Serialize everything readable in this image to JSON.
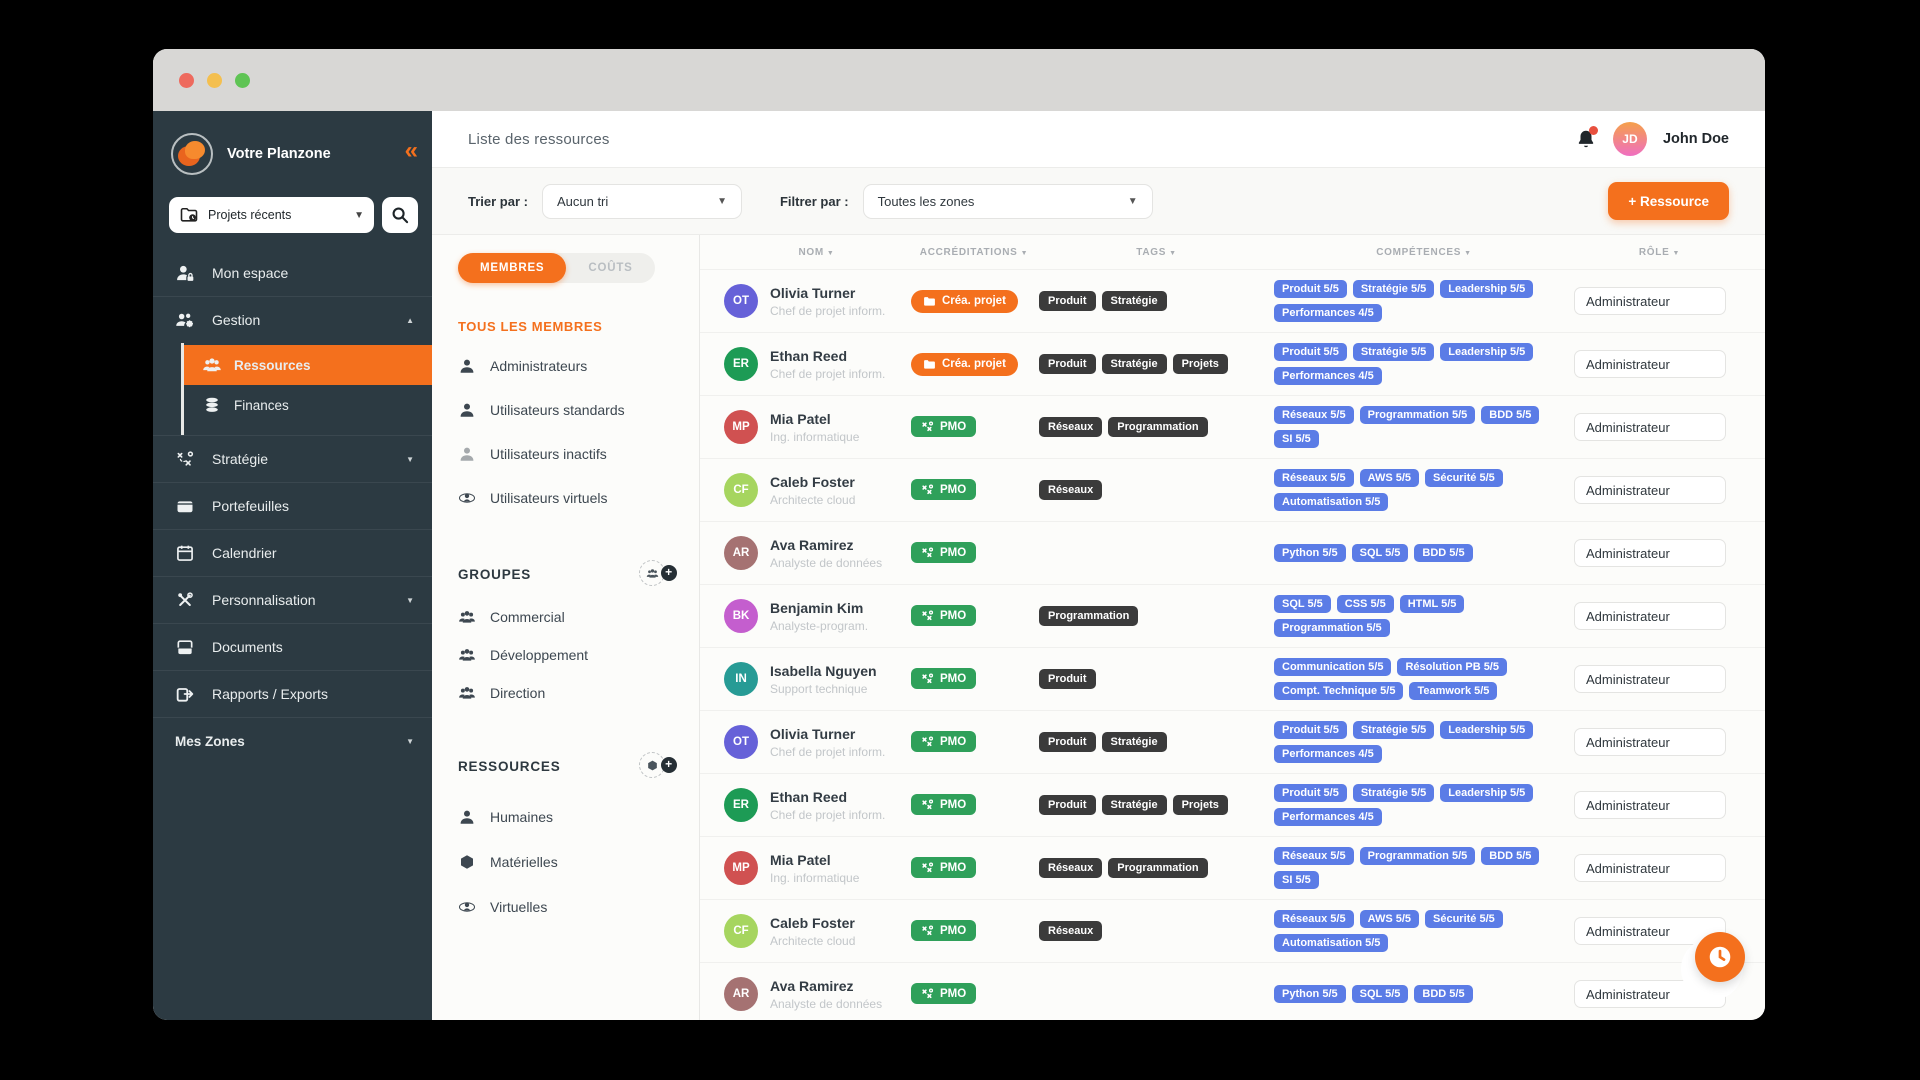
{
  "colors": {
    "accent_orange": "#f4701d",
    "sidebar_bg": "#2c3a42",
    "pmo_green": "#2fa05a",
    "skill_blue": "#5b7ce6",
    "tag_dark": "#3b3b3b",
    "traffic": [
      "#ee6a5e",
      "#f4bf4f",
      "#5fc454"
    ]
  },
  "sidebar": {
    "brand": "Votre Planzone",
    "collapse_glyph": "«",
    "project_selector": {
      "label": "Projets récents",
      "icon": "folder-clock"
    },
    "items": [
      {
        "id": "mon-espace",
        "label": "Mon espace",
        "icon": "user-lock"
      },
      {
        "id": "gestion",
        "label": "Gestion",
        "icon": "users-gear",
        "chevron": "up",
        "children": [
          {
            "id": "ressources",
            "label": "Ressources",
            "icon": "users",
            "active": true
          },
          {
            "id": "finances",
            "label": "Finances",
            "icon": "coins",
            "active": false
          }
        ]
      },
      {
        "id": "strategie",
        "label": "Stratégie",
        "icon": "strategy",
        "chevron": "down"
      },
      {
        "id": "portefeuilles",
        "label": "Portefeuilles",
        "icon": "wallet"
      },
      {
        "id": "calendrier",
        "label": "Calendrier",
        "icon": "calendar"
      },
      {
        "id": "personnalisation",
        "label": "Personnalisation",
        "icon": "tools",
        "chevron": "down"
      },
      {
        "id": "documents",
        "label": "Documents",
        "icon": "document"
      },
      {
        "id": "rapports-exports",
        "label": "Rapports / Exports",
        "icon": "export"
      }
    ],
    "zones": {
      "label": "Mes Zones",
      "chevron": "down"
    }
  },
  "header": {
    "title": "Liste des ressources",
    "user": {
      "initials": "JD",
      "name": "John Doe"
    }
  },
  "toolbar": {
    "sort_label": "Trier par :",
    "sort_value": "Aucun tri",
    "filter_label": "Filtrer par :",
    "filter_value": "Toutes les zones",
    "add_button": "+ Ressource"
  },
  "members_panel": {
    "tabs": [
      {
        "label": "MEMBRES",
        "active": true
      },
      {
        "label": "COÛTS",
        "active": false
      }
    ],
    "all_members": "TOUS LES MEMBRES",
    "member_types": [
      {
        "label": "Administrateurs",
        "icon": "user",
        "dim": false
      },
      {
        "label": "Utilisateurs standards",
        "icon": "user",
        "dim": false
      },
      {
        "label": "Utilisateurs inactifs",
        "icon": "user",
        "dim": true
      },
      {
        "label": "Utilisateurs virtuels",
        "icon": "orbit-user",
        "dim": false
      }
    ],
    "groups": {
      "title": "GROUPES",
      "add_icon": "users",
      "items": [
        "Commercial",
        "Développement",
        "Direction"
      ],
      "item_icon": "users"
    },
    "resources": {
      "title": "RESSOURCES",
      "add_icon": "cube",
      "items": [
        {
          "label": "Humaines",
          "icon": "user"
        },
        {
          "label": "Matérielles",
          "icon": "cube"
        },
        {
          "label": "Virtuelles",
          "icon": "orbit-user"
        }
      ]
    }
  },
  "table": {
    "columns": [
      "NOM",
      "ACCRÉDITATIONS",
      "TAGS",
      "COMPÉTENCES",
      "RÔLE"
    ],
    "rows": [
      {
        "initials": "OT",
        "avatar_color": "#6661d8",
        "name": "Olivia Turner",
        "subtitle": "Chef de projet inform.",
        "accreditation": {
          "label": "Créa. projet",
          "type": "crea"
        },
        "tags": [
          "Produit",
          "Stratégie"
        ],
        "skills": [
          "Produit 5/5",
          "Stratégie 5/5",
          "Leadership 5/5",
          "Performances 4/5"
        ],
        "role": "Administrateur"
      },
      {
        "initials": "ER",
        "avatar_color": "#1d9b55",
        "name": "Ethan Reed",
        "subtitle": "Chef de projet inform.",
        "accreditation": {
          "label": "Créa. projet",
          "type": "crea"
        },
        "tags": [
          "Produit",
          "Stratégie",
          "Projets"
        ],
        "skills": [
          "Produit 5/5",
          "Stratégie 5/5",
          "Leadership 5/5",
          "Performances 4/5"
        ],
        "role": "Administrateur"
      },
      {
        "initials": "MP",
        "avatar_color": "#d05151",
        "name": "Mia Patel",
        "subtitle": "Ing. informatique",
        "accreditation": {
          "label": "PMO",
          "type": "pmo"
        },
        "tags": [
          "Réseaux",
          "Programmation"
        ],
        "skills": [
          "Réseaux 5/5",
          "Programmation 5/5",
          "BDD 5/5",
          "SI 5/5"
        ],
        "role": "Administrateur"
      },
      {
        "initials": "CF",
        "avatar_color": "#a6d55f",
        "name": "Caleb Foster",
        "subtitle": "Architecte cloud",
        "accreditation": {
          "label": "PMO",
          "type": "pmo"
        },
        "tags": [
          "Réseaux"
        ],
        "skills": [
          "Réseaux 5/5",
          "AWS 5/5",
          "Sécurité 5/5",
          "Automatisation 5/5"
        ],
        "role": "Administrateur"
      },
      {
        "initials": "AR",
        "avatar_color": "#a57272",
        "name": "Ava Ramirez",
        "subtitle": "Analyste de données",
        "accreditation": {
          "label": "PMO",
          "type": "pmo"
        },
        "tags": [],
        "skills": [
          "Python 5/5",
          "SQL 5/5",
          "BDD 5/5"
        ],
        "role": "Administrateur"
      },
      {
        "initials": "BK",
        "avatar_color": "#c45ece",
        "name": "Benjamin Kim",
        "subtitle": "Analyste-program.",
        "accreditation": {
          "label": "PMO",
          "type": "pmo"
        },
        "tags": [
          "Programmation"
        ],
        "skills": [
          "SQL 5/5",
          "CSS 5/5",
          "HTML 5/5",
          "Programmation 5/5"
        ],
        "role": "Administrateur"
      },
      {
        "initials": "IN",
        "avatar_color": "#279b95",
        "name": "Isabella Nguyen",
        "subtitle": "Support technique",
        "accreditation": {
          "label": "PMO",
          "type": "pmo"
        },
        "tags": [
          "Produit"
        ],
        "skills": [
          "Communication 5/5",
          "Résolution PB 5/5",
          "Compt. Technique 5/5",
          "Teamwork 5/5"
        ],
        "role": "Administrateur"
      },
      {
        "initials": "OT",
        "avatar_color": "#6661d8",
        "name": "Olivia Turner",
        "subtitle": "Chef de projet inform.",
        "accreditation": {
          "label": "PMO",
          "type": "pmo"
        },
        "tags": [
          "Produit",
          "Stratégie"
        ],
        "skills": [
          "Produit 5/5",
          "Stratégie 5/5",
          "Leadership 5/5",
          "Performances 4/5"
        ],
        "role": "Administrateur"
      },
      {
        "initials": "ER",
        "avatar_color": "#1d9b55",
        "name": "Ethan Reed",
        "subtitle": "Chef de projet inform.",
        "accreditation": {
          "label": "PMO",
          "type": "pmo"
        },
        "tags": [
          "Produit",
          "Stratégie",
          "Projets"
        ],
        "skills": [
          "Produit 5/5",
          "Stratégie 5/5",
          "Leadership 5/5",
          "Performances 4/5"
        ],
        "role": "Administrateur"
      },
      {
        "initials": "MP",
        "avatar_color": "#d05151",
        "name": "Mia Patel",
        "subtitle": "Ing. informatique",
        "accreditation": {
          "label": "PMO",
          "type": "pmo"
        },
        "tags": [
          "Réseaux",
          "Programmation"
        ],
        "skills": [
          "Réseaux 5/5",
          "Programmation 5/5",
          "BDD 5/5",
          "SI 5/5"
        ],
        "role": "Administrateur"
      },
      {
        "initials": "CF",
        "avatar_color": "#a6d55f",
        "name": "Caleb Foster",
        "subtitle": "Architecte cloud",
        "accreditation": {
          "label": "PMO",
          "type": "pmo"
        },
        "tags": [
          "Réseaux"
        ],
        "skills": [
          "Réseaux 5/5",
          "AWS 5/5",
          "Sécurité 5/5",
          "Automatisation 5/5"
        ],
        "role": "Administrateur"
      },
      {
        "initials": "AR",
        "avatar_color": "#a57272",
        "name": "Ava Ramirez",
        "subtitle": "Analyste de données",
        "accreditation": {
          "label": "PMO",
          "type": "pmo"
        },
        "tags": [],
        "skills": [
          "Python 5/5",
          "SQL 5/5",
          "BDD 5/5"
        ],
        "role": "Administrateur"
      }
    ]
  },
  "fab": {
    "icon": "clock"
  }
}
